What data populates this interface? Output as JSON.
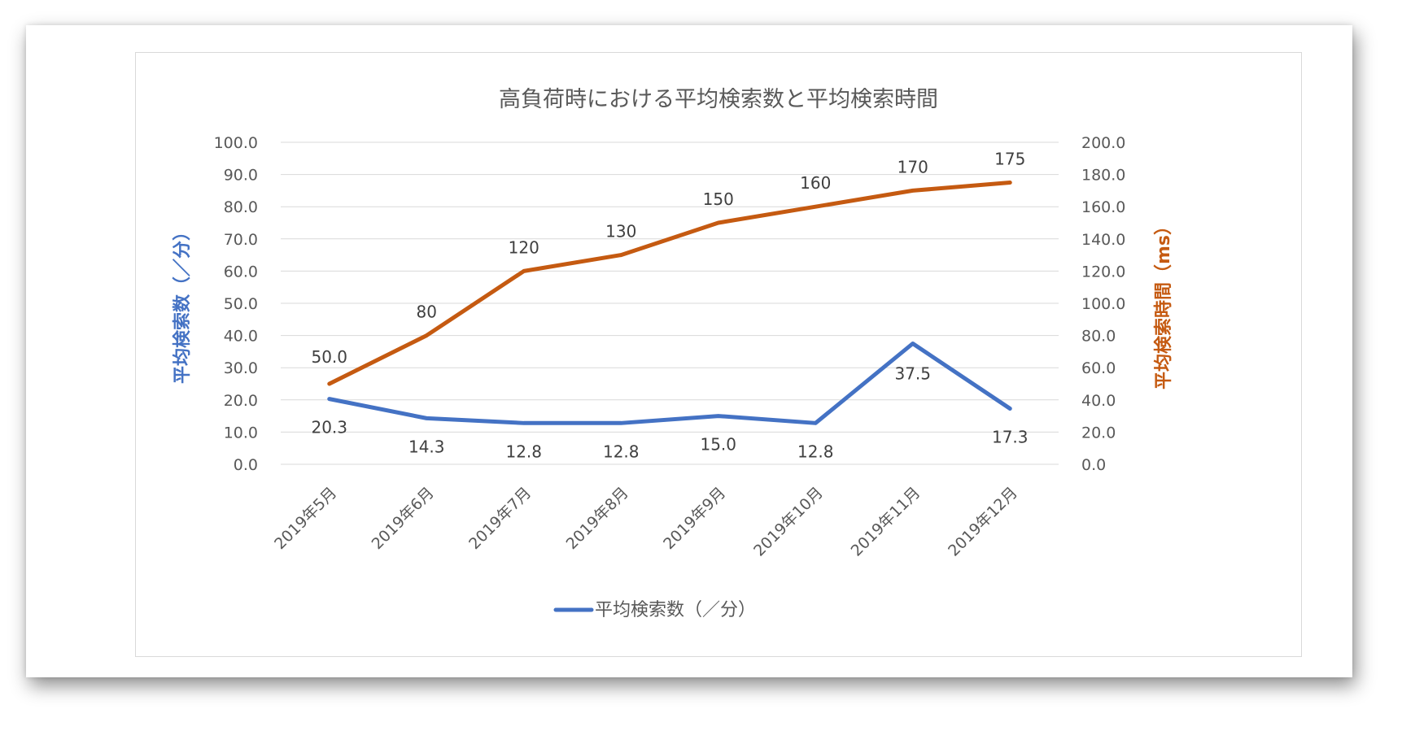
{
  "chart_data": {
    "type": "line",
    "title": "高負荷時における平均検索数と平均検索時間",
    "categories": [
      "2019年5月",
      "2019年6月",
      "2019年7月",
      "2019年8月",
      "2019年9月",
      "2019年10月",
      "2019年11月",
      "2019年12月"
    ],
    "ylabel_left": "平均検索数（／分）",
    "ylabel_right": "平均検索時間（ms）",
    "ylim_left": [
      0,
      100
    ],
    "ylim_right": [
      0,
      200
    ],
    "yticks_left": [
      "0.0",
      "10.0",
      "20.0",
      "30.0",
      "40.0",
      "50.0",
      "60.0",
      "70.0",
      "80.0",
      "90.0",
      "100.0"
    ],
    "yticks_right": [
      "0.0",
      "20.0",
      "40.0",
      "60.0",
      "80.0",
      "100.0",
      "120.0",
      "140.0",
      "160.0",
      "180.0",
      "200.0"
    ],
    "grid": true,
    "legend_position": "bottom",
    "series": [
      {
        "name": "平均検索数（／分）",
        "axis": "left",
        "color": "#4472C4",
        "values": [
          20.3,
          14.3,
          12.8,
          12.8,
          15.0,
          12.8,
          37.5,
          17.3
        ],
        "labels": [
          "20.3",
          "14.3",
          "12.8",
          "12.8",
          "15.0",
          "12.8",
          "37.5",
          "17.3"
        ],
        "in_legend": true
      },
      {
        "axis": "right",
        "color": "#C55A11",
        "values": [
          50,
          80,
          120,
          130,
          150,
          160,
          170,
          175
        ],
        "labels": [
          "50.0",
          "80",
          "120",
          "130",
          "150",
          "160",
          "170",
          "175"
        ],
        "in_legend": false
      }
    ]
  }
}
